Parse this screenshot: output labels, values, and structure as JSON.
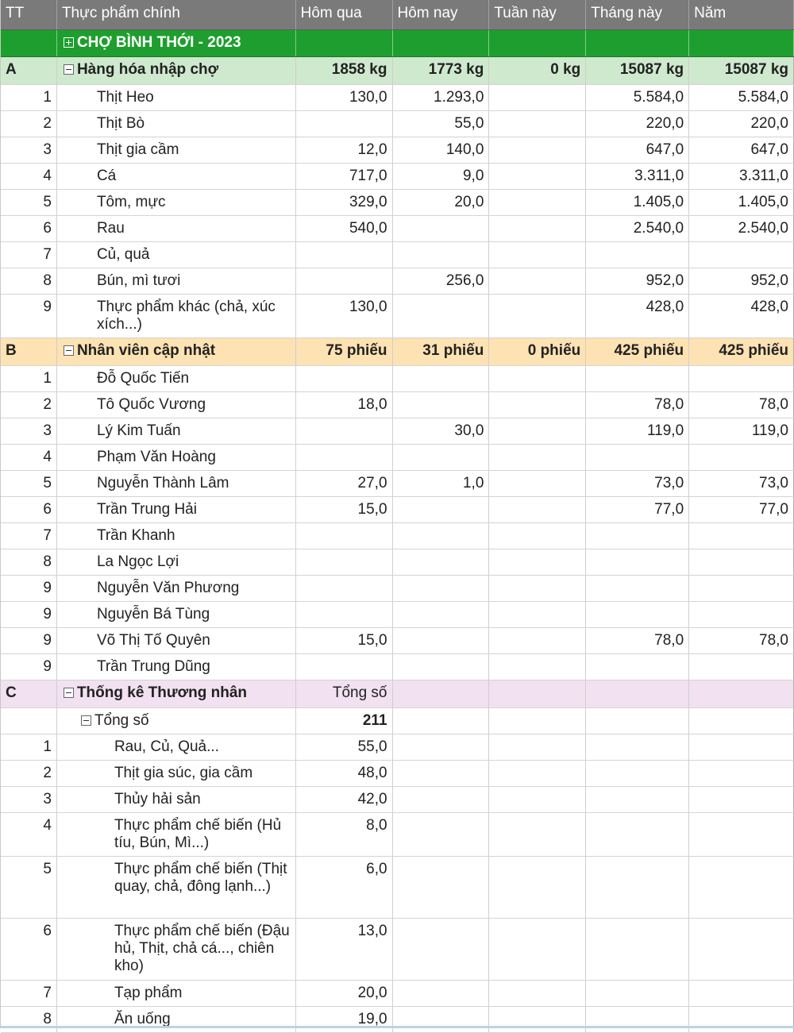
{
  "columns": [
    "TT",
    "Thực phẩm chính",
    "Hôm qua",
    "Hôm nay",
    "Tuần này",
    "Tháng này",
    "Năm"
  ],
  "group": {
    "title": "CHỢ BÌNH THỚI - 2023"
  },
  "sections": [
    {
      "code": "A",
      "title": "Hàng hóa nhập chợ",
      "totals": [
        "1858 kg",
        "1773 kg",
        "0 kg",
        "15087 kg",
        "15087 kg"
      ],
      "rows": [
        {
          "tt": "1",
          "name": "Thịt Heo",
          "v": [
            "130,0",
            "1.293,0",
            "",
            "5.584,0",
            "5.584,0"
          ]
        },
        {
          "tt": "2",
          "name": "Thịt Bò",
          "v": [
            "",
            "55,0",
            "",
            "220,0",
            "220,0"
          ]
        },
        {
          "tt": "3",
          "name": "Thịt gia cầm",
          "v": [
            "12,0",
            "140,0",
            "",
            "647,0",
            "647,0"
          ]
        },
        {
          "tt": "4",
          "name": "Cá",
          "v": [
            "717,0",
            "9,0",
            "",
            "3.311,0",
            "3.311,0"
          ]
        },
        {
          "tt": "5",
          "name": "Tôm, mực",
          "v": [
            "329,0",
            "20,0",
            "",
            "1.405,0",
            "1.405,0"
          ]
        },
        {
          "tt": "6",
          "name": "Rau",
          "v": [
            "540,0",
            "",
            "",
            "2.540,0",
            "2.540,0"
          ]
        },
        {
          "tt": "7",
          "name": "Củ, quả",
          "v": [
            "",
            "",
            "",
            "",
            ""
          ]
        },
        {
          "tt": "8",
          "name": "Bún, mì tươi",
          "v": [
            "",
            "256,0",
            "",
            "952,0",
            "952,0"
          ]
        },
        {
          "tt": "9",
          "name": "Thực phẩm khác (chả, xúc xích...)",
          "v": [
            "130,0",
            "",
            "",
            "428,0",
            "428,0"
          ]
        }
      ]
    },
    {
      "code": "B",
      "title": "Nhân viên cập nhật",
      "totals": [
        "75 phiếu",
        "31 phiếu",
        "0 phiếu",
        "425 phiếu",
        "425 phiếu"
      ],
      "rows": [
        {
          "tt": "1",
          "name": "Đỗ Quốc Tiến",
          "v": [
            "",
            "",
            "",
            "",
            ""
          ]
        },
        {
          "tt": "2",
          "name": "Tô Quốc Vương",
          "v": [
            "18,0",
            "",
            "",
            "78,0",
            "78,0"
          ]
        },
        {
          "tt": "3",
          "name": "Lý Kim Tuấn",
          "v": [
            "",
            "30,0",
            "",
            "119,0",
            "119,0"
          ]
        },
        {
          "tt": "4",
          "name": "Phạm Văn Hoàng",
          "v": [
            "",
            "",
            "",
            "",
            ""
          ]
        },
        {
          "tt": "5",
          "name": "Nguyễn Thành Lâm",
          "v": [
            "27,0",
            "1,0",
            "",
            "73,0",
            "73,0"
          ]
        },
        {
          "tt": "6",
          "name": "Trần Trung Hải",
          "v": [
            "15,0",
            "",
            "",
            "77,0",
            "77,0"
          ]
        },
        {
          "tt": "7",
          "name": "Trần Khanh",
          "v": [
            "",
            "",
            "",
            "",
            ""
          ]
        },
        {
          "tt": "8",
          "name": "La Ngọc Lợi",
          "v": [
            "",
            "",
            "",
            "",
            ""
          ]
        },
        {
          "tt": "9",
          "name": "Nguyễn Văn Phương",
          "v": [
            "",
            "",
            "",
            "",
            ""
          ]
        },
        {
          "tt": "9",
          "name": "Nguyễn Bá Tùng",
          "v": [
            "",
            "",
            "",
            "",
            ""
          ]
        },
        {
          "tt": "9",
          "name": "Võ Thị Tố Quyên",
          "v": [
            "15,0",
            "",
            "",
            "78,0",
            "78,0"
          ]
        },
        {
          "tt": "9",
          "name": "Trần Trung Dũng",
          "v": [
            "",
            "",
            "",
            "",
            ""
          ]
        }
      ]
    },
    {
      "code": "C",
      "title": "Thống kê Thương nhân",
      "total_label": "Tổng số",
      "subgroup": {
        "title": "Tổng số",
        "value": "211"
      },
      "rows": [
        {
          "tt": "1",
          "name": "Rau, Củ, Quả...",
          "v": "55,0"
        },
        {
          "tt": "2",
          "name": "Thịt gia súc, gia cầm",
          "v": "48,0"
        },
        {
          "tt": "3",
          "name": "Thủy hải sản",
          "v": "42,0"
        },
        {
          "tt": "4",
          "name": "Thực phẩm chế biến (Hủ tíu, Bún, Mì...)",
          "v": "8,0"
        },
        {
          "tt": "5",
          "name": "Thực phẩm chế biến (Thịt quay, chả, đông lạnh...)",
          "v": "6,0"
        },
        {
          "tt": "6",
          "name": "Thực phẩm chế biến (Đậu hủ, Thịt, chả cá..., chiên kho)",
          "v": "13,0"
        },
        {
          "tt": "7",
          "name": "Tạp phẩm",
          "v": "20,0"
        },
        {
          "tt": "8",
          "name": "Ăn uống",
          "v": "19,0"
        }
      ]
    }
  ],
  "icons": {
    "expanded": "minus-toggle-icon",
    "collapsed": "plus-toggle-icon"
  },
  "colors": {
    "header": "#7a7a7a",
    "group": "#1e9e2e",
    "sectionA": "#cfe9cf",
    "sectionB": "#fde2b3",
    "sectionC": "#f1e1f1"
  }
}
